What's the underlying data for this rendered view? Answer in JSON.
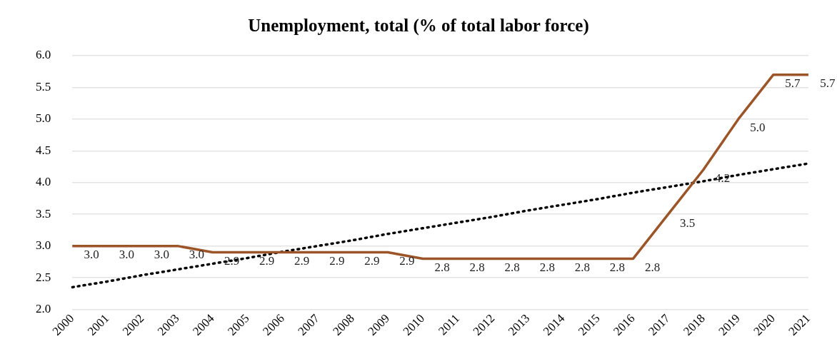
{
  "chart_data": {
    "type": "line",
    "title": "Unemployment, total (% of total labor force)",
    "categories": [
      "2000",
      "2001",
      "2002",
      "2003",
      "2004",
      "2005",
      "2006",
      "2007",
      "2008",
      "2009",
      "2010",
      "2011",
      "2012",
      "2013",
      "2014",
      "2015",
      "2016",
      "2017",
      "2018",
      "2019",
      "2020",
      "2021"
    ],
    "series": [
      {
        "color": "#9c5528",
        "values": [
          3.0,
          3.0,
          3.0,
          3.0,
          2.9,
          2.9,
          2.9,
          2.9,
          2.9,
          2.9,
          2.8,
          2.8,
          2.8,
          2.8,
          2.8,
          2.8,
          2.8,
          3.5,
          4.2,
          5.0,
          5.7,
          5.7
        ],
        "value_labels": [
          "3.0",
          "3.0",
          "3.0",
          "3.0",
          "2.9",
          "2.9",
          "2.9",
          "2.9",
          "2.9",
          "2.9",
          "2.8",
          "2.8",
          "2.8",
          "2.8",
          "2.8",
          "2.8",
          "2.8",
          "3.5",
          "4.2",
          "5.0",
          "5.7",
          "5.7"
        ]
      },
      {
        "color": "#000000",
        "line_style": "dotted",
        "values": [
          2.35,
          2.44,
          2.54,
          2.63,
          2.72,
          2.81,
          2.91,
          3.0,
          3.09,
          3.19,
          3.28,
          3.37,
          3.46,
          3.56,
          3.65,
          3.74,
          3.84,
          3.93,
          4.02,
          4.12,
          4.21,
          4.3
        ]
      }
    ],
    "ylim": [
      2.0,
      6.0
    ],
    "yticks": [
      {
        "value": 2.0,
        "label": "2.0"
      },
      {
        "value": 2.5,
        "label": "2.5"
      },
      {
        "value": 3.0,
        "label": "3.0"
      },
      {
        "value": 3.5,
        "label": "3.5"
      },
      {
        "value": 4.0,
        "label": "4.0"
      },
      {
        "value": 4.5,
        "label": "4.5"
      },
      {
        "value": 5.0,
        "label": "5.0"
      },
      {
        "value": 5.5,
        "label": "5.5"
      },
      {
        "value": 6.0,
        "label": "6.0"
      }
    ],
    "grid": "y",
    "legend": false,
    "marker": "none"
  }
}
